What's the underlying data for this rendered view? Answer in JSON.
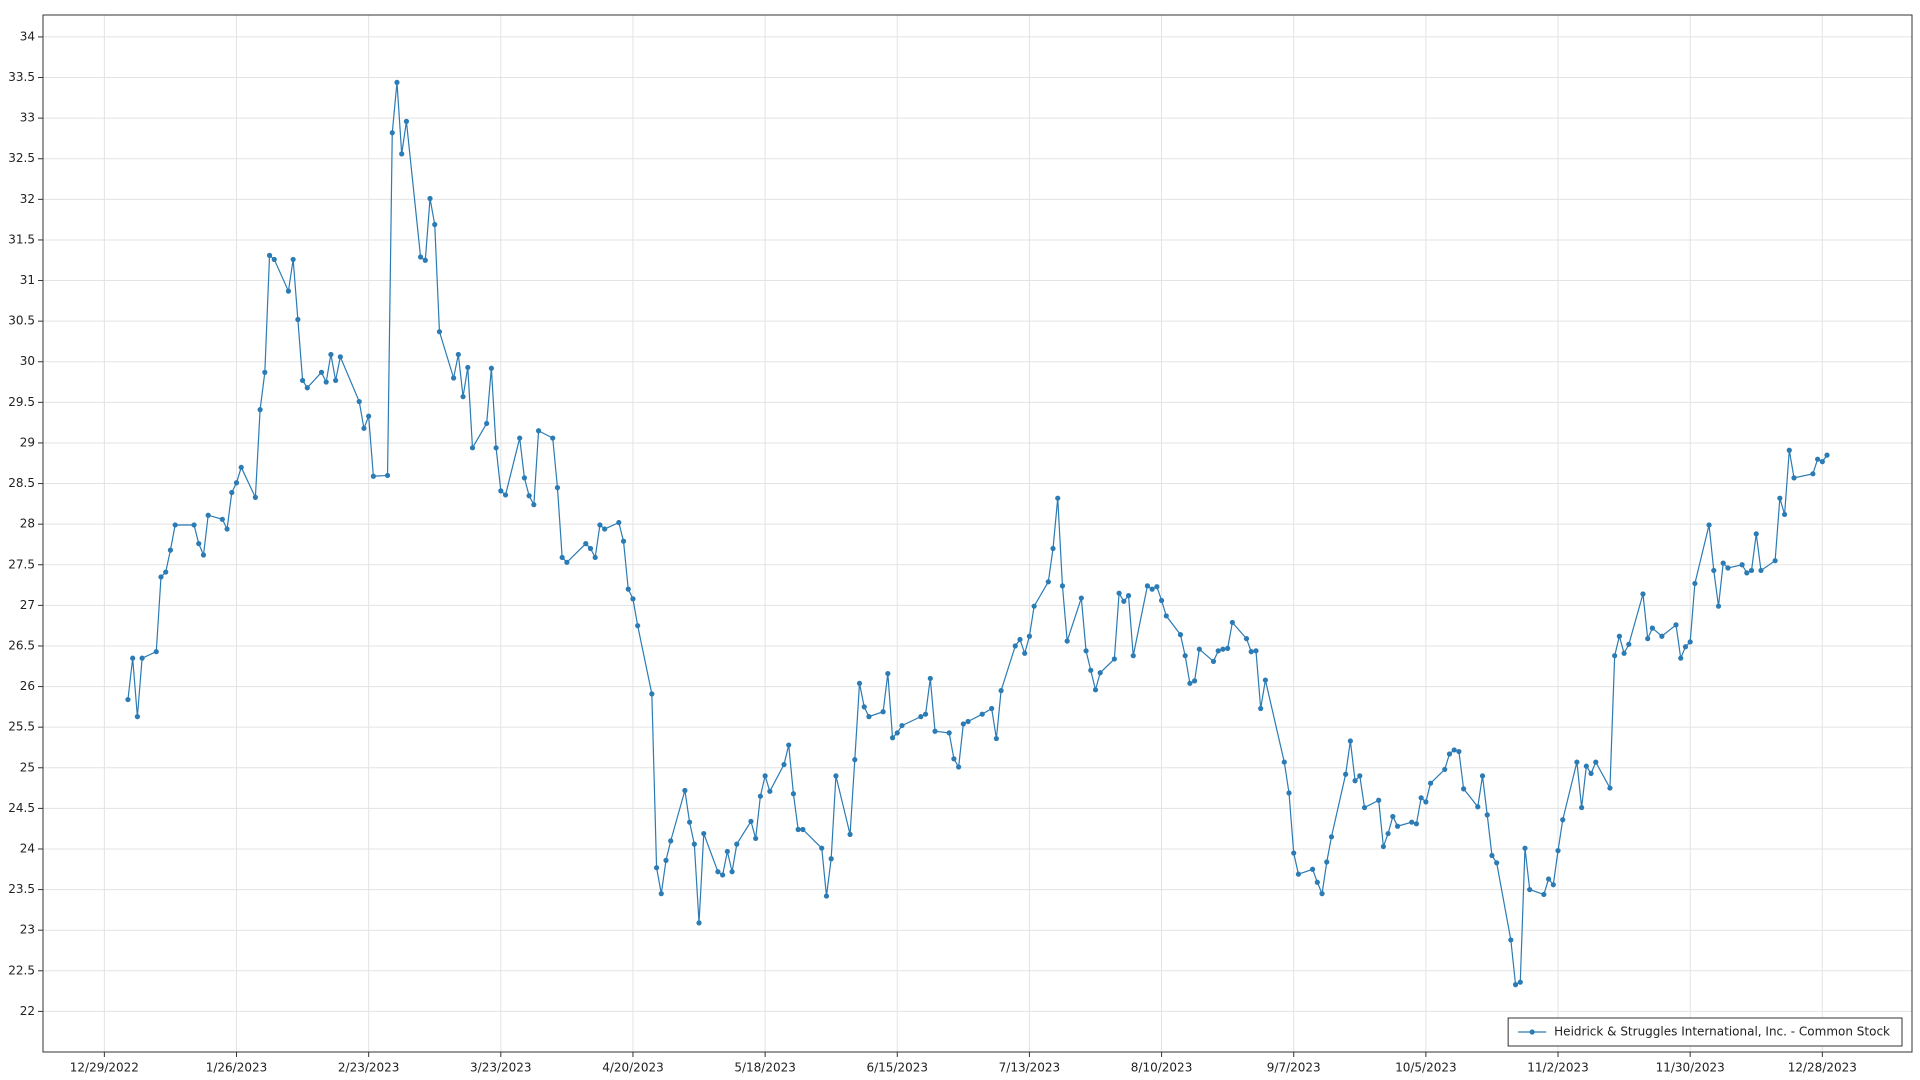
{
  "chart_data": {
    "type": "line",
    "x": [
      "1/3/2023",
      "1/4/2023",
      "1/5/2023",
      "1/6/2023",
      "1/9/2023",
      "1/10/2023",
      "1/11/2023",
      "1/12/2023",
      "1/13/2023",
      "1/17/2023",
      "1/18/2023",
      "1/19/2023",
      "1/20/2023",
      "1/23/2023",
      "1/24/2023",
      "1/25/2023",
      "1/26/2023",
      "1/27/2023",
      "1/30/2023",
      "1/31/2023",
      "2/1/2023",
      "2/2/2023",
      "2/3/2023",
      "2/6/2023",
      "2/7/2023",
      "2/8/2023",
      "2/9/2023",
      "2/10/2023",
      "2/13/2023",
      "2/14/2023",
      "2/15/2023",
      "2/16/2023",
      "2/17/2023",
      "2/21/2023",
      "2/22/2023",
      "2/23/2023",
      "2/24/2023",
      "2/27/2023",
      "2/28/2023",
      "3/1/2023",
      "3/2/2023",
      "3/3/2023",
      "3/6/2023",
      "3/7/2023",
      "3/8/2023",
      "3/9/2023",
      "3/10/2023",
      "3/13/2023",
      "3/14/2023",
      "3/15/2023",
      "3/16/2023",
      "3/17/2023",
      "3/20/2023",
      "3/21/2023",
      "3/22/2023",
      "3/23/2023",
      "3/24/2023",
      "3/27/2023",
      "3/28/2023",
      "3/29/2023",
      "3/30/2023",
      "3/31/2023",
      "4/3/2023",
      "4/4/2023",
      "4/5/2023",
      "4/6/2023",
      "4/10/2023",
      "4/11/2023",
      "4/12/2023",
      "4/13/2023",
      "4/14/2023",
      "4/17/2023",
      "4/18/2023",
      "4/19/2023",
      "4/20/2023",
      "4/21/2023",
      "4/24/2023",
      "4/25/2023",
      "4/26/2023",
      "4/27/2023",
      "4/28/2023",
      "5/1/2023",
      "5/2/2023",
      "5/3/2023",
      "5/4/2023",
      "5/5/2023",
      "5/8/2023",
      "5/9/2023",
      "5/10/2023",
      "5/11/2023",
      "5/12/2023",
      "5/15/2023",
      "5/16/2023",
      "5/17/2023",
      "5/18/2023",
      "5/19/2023",
      "5/22/2023",
      "5/23/2023",
      "5/24/2023",
      "5/25/2023",
      "5/26/2023",
      "5/30/2023",
      "5/31/2023",
      "6/1/2023",
      "6/2/2023",
      "6/5/2023",
      "6/6/2023",
      "6/7/2023",
      "6/8/2023",
      "6/9/2023",
      "6/12/2023",
      "6/13/2023",
      "6/14/2023",
      "6/15/2023",
      "6/16/2023",
      "6/20/2023",
      "6/21/2023",
      "6/22/2023",
      "6/23/2023",
      "6/26/2023",
      "6/27/2023",
      "6/28/2023",
      "6/29/2023",
      "6/30/2023",
      "7/3/2023",
      "7/5/2023",
      "7/6/2023",
      "7/7/2023",
      "7/10/2023",
      "7/11/2023",
      "7/12/2023",
      "7/13/2023",
      "7/14/2023",
      "7/17/2023",
      "7/18/2023",
      "7/19/2023",
      "7/20/2023",
      "7/21/2023",
      "7/24/2023",
      "7/25/2023",
      "7/26/2023",
      "7/27/2023",
      "7/28/2023",
      "7/31/2023",
      "8/1/2023",
      "8/2/2023",
      "8/3/2023",
      "8/4/2023",
      "8/7/2023",
      "8/8/2023",
      "8/9/2023",
      "8/10/2023",
      "8/11/2023",
      "8/14/2023",
      "8/15/2023",
      "8/16/2023",
      "8/17/2023",
      "8/18/2023",
      "8/21/2023",
      "8/22/2023",
      "8/23/2023",
      "8/24/2023",
      "8/25/2023",
      "8/28/2023",
      "8/29/2023",
      "8/30/2023",
      "8/31/2023",
      "9/1/2023",
      "9/5/2023",
      "9/6/2023",
      "9/7/2023",
      "9/8/2023",
      "9/11/2023",
      "9/12/2023",
      "9/13/2023",
      "9/14/2023",
      "9/15/2023",
      "9/18/2023",
      "9/19/2023",
      "9/20/2023",
      "9/21/2023",
      "9/22/2023",
      "9/25/2023",
      "9/26/2023",
      "9/27/2023",
      "9/28/2023",
      "9/29/2023",
      "10/2/2023",
      "10/3/2023",
      "10/4/2023",
      "10/5/2023",
      "10/6/2023",
      "10/9/2023",
      "10/10/2023",
      "10/11/2023",
      "10/12/2023",
      "10/13/2023",
      "10/16/2023",
      "10/17/2023",
      "10/18/2023",
      "10/19/2023",
      "10/20/2023",
      "10/23/2023",
      "10/24/2023",
      "10/25/2023",
      "10/26/2023",
      "10/27/2023",
      "10/30/2023",
      "10/31/2023",
      "11/1/2023",
      "11/2/2023",
      "11/3/2023",
      "11/6/2023",
      "11/7/2023",
      "11/8/2023",
      "11/9/2023",
      "11/10/2023",
      "11/13/2023",
      "11/14/2023",
      "11/15/2023",
      "11/16/2023",
      "11/17/2023",
      "11/20/2023",
      "11/21/2023",
      "11/22/2023",
      "11/24/2023",
      "11/27/2023",
      "11/28/2023",
      "11/29/2023",
      "11/30/2023",
      "12/1/2023",
      "12/4/2023",
      "12/5/2023",
      "12/6/2023",
      "12/7/2023",
      "12/8/2023",
      "12/11/2023",
      "12/12/2023",
      "12/13/2023",
      "12/14/2023",
      "12/15/2023",
      "12/18/2023",
      "12/19/2023",
      "12/20/2023",
      "12/21/2023",
      "12/22/2023",
      "12/26/2023",
      "12/27/2023",
      "12/28/2023",
      "12/29/2023"
    ],
    "series": [
      {
        "name": "Heidrick & Struggles International, Inc. - Common Stock",
        "color": "#2b7bb4",
        "values": [
          25.84,
          26.35,
          25.63,
          26.35,
          26.43,
          27.35,
          27.41,
          27.68,
          27.99,
          27.99,
          27.76,
          27.62,
          28.11,
          28.06,
          27.94,
          28.39,
          28.51,
          28.7,
          28.33,
          29.41,
          29.87,
          31.31,
          31.26,
          30.87,
          31.26,
          30.52,
          29.77,
          29.68,
          29.87,
          29.75,
          30.09,
          29.77,
          30.06,
          29.51,
          29.18,
          29.33,
          28.59,
          28.6,
          32.82,
          33.44,
          32.56,
          32.96,
          31.29,
          31.25,
          32.01,
          31.69,
          30.37,
          29.8,
          30.09,
          29.57,
          29.93,
          28.94,
          29.24,
          29.92,
          28.94,
          28.41,
          28.36,
          29.06,
          28.57,
          28.35,
          28.24,
          29.15,
          29.06,
          28.45,
          27.59,
          27.53,
          27.76,
          27.7,
          27.59,
          27.99,
          27.94,
          28.02,
          27.79,
          27.2,
          27.08,
          26.75,
          25.91,
          23.77,
          23.45,
          23.86,
          24.1,
          24.72,
          24.33,
          24.06,
          23.09,
          24.19,
          23.72,
          23.68,
          23.97,
          23.72,
          24.06,
          24.34,
          24.13,
          24.65,
          24.9,
          24.71,
          25.04,
          25.28,
          24.68,
          24.24,
          24.24,
          24.01,
          23.42,
          23.88,
          24.9,
          24.18,
          25.1,
          26.04,
          25.75,
          25.63,
          25.69,
          26.16,
          25.37,
          25.43,
          25.52,
          25.63,
          25.66,
          26.1,
          25.45,
          25.43,
          25.11,
          25.01,
          25.54,
          25.57,
          25.66,
          25.73,
          25.36,
          25.95,
          26.5,
          26.58,
          26.41,
          26.62,
          26.99,
          27.29,
          27.7,
          28.32,
          27.24,
          26.56,
          27.09,
          26.44,
          26.2,
          25.96,
          26.17,
          26.34,
          27.15,
          27.05,
          27.12,
          26.38,
          27.24,
          27.2,
          27.23,
          27.06,
          26.87,
          26.64,
          26.38,
          26.04,
          26.07,
          26.46,
          26.31,
          26.44,
          26.46,
          26.47,
          26.79,
          26.59,
          26.43,
          26.44,
          25.73,
          26.08,
          25.07,
          24.69,
          23.95,
          23.69,
          23.75,
          23.59,
          23.45,
          23.84,
          24.15,
          24.92,
          25.33,
          24.84,
          24.9,
          24.51,
          24.6,
          24.03,
          24.19,
          24.4,
          24.28,
          24.33,
          24.31,
          24.63,
          24.58,
          24.81,
          24.98,
          25.17,
          25.22,
          25.2,
          24.74,
          24.52,
          24.9,
          24.42,
          23.92,
          23.83,
          22.88,
          22.33,
          22.36,
          24.01,
          23.5,
          23.44,
          23.63,
          23.56,
          23.98,
          24.36,
          25.07,
          24.51,
          25.02,
          24.93,
          25.07,
          24.75,
          26.38,
          26.62,
          26.41,
          26.52,
          27.14,
          26.59,
          26.72,
          26.62,
          26.76,
          26.35,
          26.49,
          26.55,
          27.27,
          27.99,
          27.43,
          26.99,
          27.52,
          27.46,
          27.5,
          27.4,
          27.43,
          27.88,
          27.43,
          27.55,
          28.32,
          28.12,
          28.91,
          28.57,
          28.62,
          28.8,
          28.77,
          28.85
        ]
      }
    ],
    "xlim": [
      "12/16/2022",
      "1/16/2024"
    ],
    "xticks": [
      "12/29/2022",
      "1/26/2023",
      "2/23/2023",
      "3/23/2023",
      "4/20/2023",
      "5/18/2023",
      "6/15/2023",
      "7/13/2023",
      "8/10/2023",
      "9/7/2023",
      "10/5/2023",
      "11/2/2023",
      "11/30/2023",
      "12/28/2023"
    ],
    "ylim": [
      21.5,
      34.27
    ],
    "yticks": [
      22,
      22.5,
      23,
      23.5,
      24,
      24.5,
      25,
      25.5,
      26,
      26.5,
      27,
      27.5,
      28,
      28.5,
      29,
      29.5,
      30,
      30.5,
      31,
      31.5,
      32,
      32.5,
      33,
      33.5,
      34
    ],
    "grid": true,
    "legend": "lower right"
  }
}
